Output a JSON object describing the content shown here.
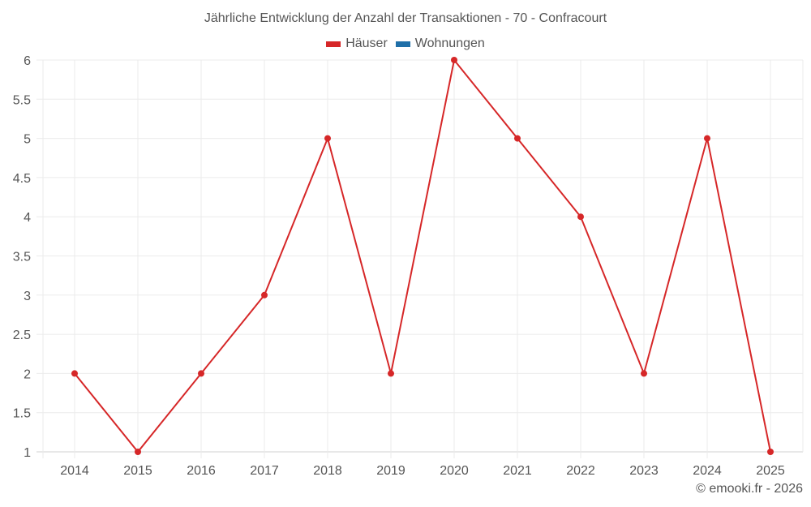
{
  "chart_data": {
    "type": "line",
    "title": "Jährliche Entwicklung der Anzahl der Transaktionen - 70 - Confracourt",
    "categories": [
      "2014",
      "2015",
      "2016",
      "2017",
      "2018",
      "2019",
      "2020",
      "2021",
      "2022",
      "2023",
      "2024",
      "2025"
    ],
    "series": [
      {
        "name": "Häuser",
        "color": "#d62728",
        "values": [
          2,
          1,
          2,
          3,
          5,
          2,
          6,
          5,
          4,
          2,
          5,
          1
        ]
      },
      {
        "name": "Wohnungen",
        "color": "#1f6fa8",
        "values": []
      }
    ],
    "xlabel": "",
    "ylabel": "",
    "ylim": [
      1,
      6
    ],
    "yticks": [
      "1",
      "1.5",
      "2",
      "2.5",
      "3",
      "3.5",
      "4",
      "4.5",
      "5",
      "5.5",
      "6"
    ],
    "grid": true,
    "legend_position": "top"
  },
  "header": {
    "title": "Jährliche Entwicklung der Anzahl der Transaktionen - 70 - Confracourt"
  },
  "legend": {
    "items": [
      {
        "label": "Häuser",
        "color": "#d62728"
      },
      {
        "label": "Wohnungen",
        "color": "#1f6fa8"
      }
    ]
  },
  "footer": {
    "credit": "© emooki.fr - 2026"
  }
}
